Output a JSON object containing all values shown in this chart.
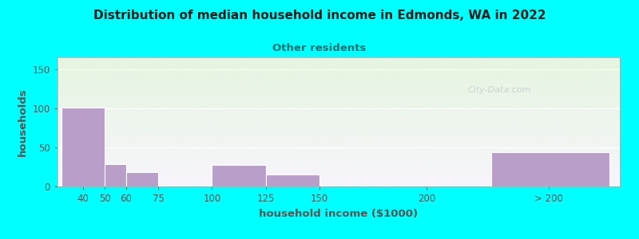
{
  "title": "Distribution of median household income in Edmonds, WA in 2022",
  "subtitle": "Other residents",
  "xlabel": "household income ($1000)",
  "ylabel": "households",
  "background_color": "#00FFFF",
  "bar_color": "#b89ec8",
  "title_color": "#1a1a1a",
  "subtitle_color": "#007070",
  "axis_label_color": "#555555",
  "tick_label_color": "#555555",
  "bar_lefts": [
    30,
    50,
    60,
    75,
    100,
    125,
    150,
    200,
    230
  ],
  "bar_heights": [
    101,
    29,
    18,
    0,
    28,
    15,
    0,
    0,
    44
  ],
  "bar_widths": [
    20,
    10,
    15,
    25,
    25,
    25,
    50,
    30,
    55
  ],
  "xtick_labels": [
    "40",
    "50",
    "60",
    "75",
    "100",
    "125",
    "150",
    "200",
    "> 200"
  ],
  "xtick_positions": [
    40,
    50,
    60,
    75,
    100,
    125,
    150,
    200,
    257
  ],
  "ytick_positions": [
    0,
    50,
    100,
    150
  ],
  "ylim": [
    0,
    165
  ],
  "xlim": [
    28,
    290
  ],
  "gradient_top": "#e5f5e0",
  "gradient_bottom": "#f8f5fc",
  "watermark": "City-Data.com"
}
